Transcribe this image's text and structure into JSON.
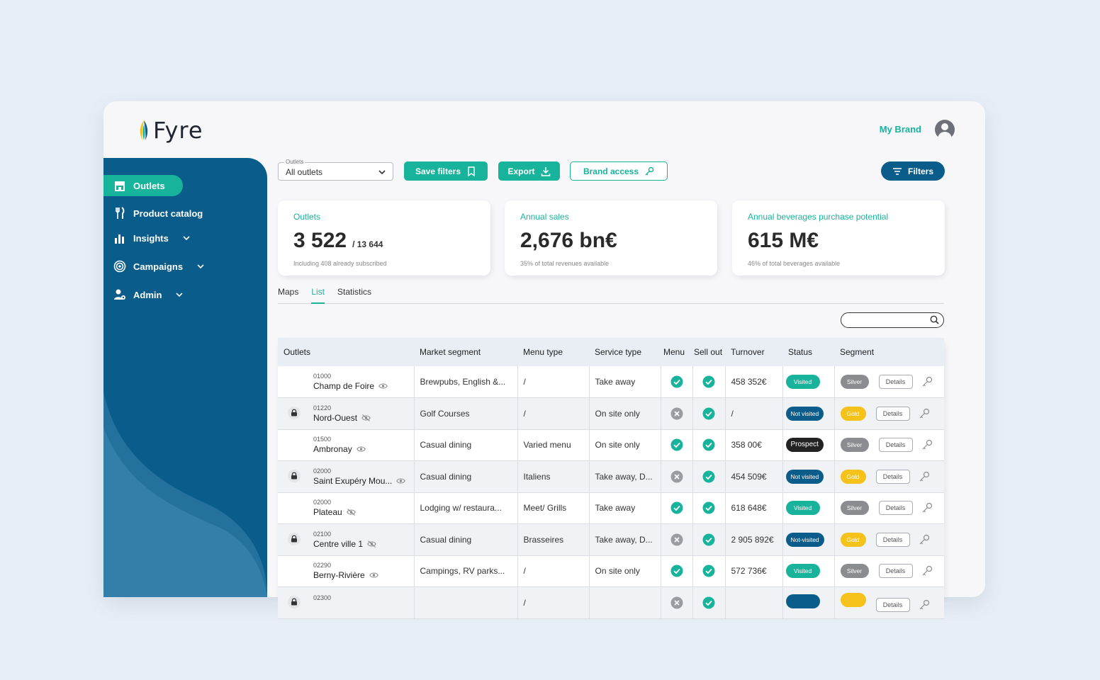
{
  "app": {
    "logo_text": "Fyre",
    "brand": "My Brand"
  },
  "colors": {
    "teal": "#17b39b",
    "navy": "#0a5d8b",
    "gold": "#f4c21b",
    "silver": "#8a8c90"
  },
  "sidebar": {
    "items": [
      {
        "label": "Outlets",
        "icon": "store-icon",
        "active": true
      },
      {
        "label": "Product catalog",
        "icon": "cutlery-icon"
      },
      {
        "label": "Insights",
        "icon": "bar-chart-icon",
        "expandable": true
      },
      {
        "label": "Campaigns",
        "icon": "target-icon",
        "expandable": true
      },
      {
        "label": "Admin",
        "icon": "user-gear-icon",
        "expandable": true
      }
    ]
  },
  "toolbar": {
    "select_label": "Outlets",
    "select_value": "All outlets",
    "save_filters": "Save filters",
    "export": "Export",
    "brand_access": "Brand access",
    "filters": "Filters"
  },
  "cards": [
    {
      "title": "Outlets",
      "value": "3 522",
      "sub": "/ 13 644",
      "note": "Including 408 already subscribed"
    },
    {
      "title": "Annual sales",
      "value": "2,676 bn€",
      "sub": "",
      "note": "35% of total revenues available"
    },
    {
      "title": "Annual beverages purchase potential",
      "value": "615 M€",
      "sub": "",
      "note": "46% of total beverages available"
    }
  ],
  "tabs": [
    {
      "label": "Maps"
    },
    {
      "label": "List",
      "active": true
    },
    {
      "label": "Statistics"
    }
  ],
  "table": {
    "headers": [
      "Outlets",
      "Market segment",
      "Menu type",
      "Service type",
      "Menu",
      "Sell out",
      "Turnover",
      "Status",
      "Segment"
    ],
    "details_label": "Details",
    "rows": [
      {
        "code": "01000",
        "name": "Champ de Foire",
        "locked": false,
        "visible": true,
        "market": "Brewpubs, English &...",
        "menu_type": "/",
        "service": "Take away",
        "menu_ok": true,
        "sellout_ok": true,
        "turnover": "458 352€",
        "status": "Visited",
        "status_kind": "visited",
        "segment": "Silver",
        "segment_kind": "silver"
      },
      {
        "code": "01220",
        "name": "Nord-Ouest",
        "locked": true,
        "visible": false,
        "market": "Golf Courses",
        "menu_type": "/",
        "service": "On site only",
        "menu_ok": false,
        "sellout_ok": true,
        "turnover": "/",
        "status": "Not visited",
        "status_kind": "notv",
        "segment": "Gold",
        "segment_kind": "gold"
      },
      {
        "code": "01500",
        "name": "Ambronay",
        "locked": false,
        "visible": true,
        "market": "Casual dining",
        "menu_type": "Varied menu",
        "service": "On site only",
        "menu_ok": true,
        "sellout_ok": true,
        "turnover": "358 00€",
        "status": "Prospect",
        "status_kind": "prospect",
        "segment": "Silver",
        "segment_kind": "silver"
      },
      {
        "code": "02000",
        "name": "Saint Exupéry Mou...",
        "locked": true,
        "visible": true,
        "market": "Casual dining",
        "menu_type": "Italiens",
        "service": "Take away, D...",
        "menu_ok": false,
        "sellout_ok": true,
        "turnover": "454 509€",
        "status": "Not visited",
        "status_kind": "notv",
        "segment": "Gold",
        "segment_kind": "gold"
      },
      {
        "code": "02000",
        "name": "Plateau",
        "locked": false,
        "visible": false,
        "market": "Lodging w/ restaura...",
        "menu_type": "Meet/ Grills",
        "service": "Take away",
        "menu_ok": true,
        "sellout_ok": true,
        "turnover": "618 648€",
        "status": "Visited",
        "status_kind": "visited",
        "segment": "Silver",
        "segment_kind": "silver"
      },
      {
        "code": "02100",
        "name": "Centre ville 1",
        "locked": true,
        "visible": false,
        "market": "Casual dining",
        "menu_type": "Brasseires",
        "service": "Take away, D...",
        "menu_ok": false,
        "sellout_ok": true,
        "turnover": "2 905 892€",
        "status": "Not-visited",
        "status_kind": "notv",
        "segment": "Gold",
        "segment_kind": "gold"
      },
      {
        "code": "02290",
        "name": "Berny-Rivière",
        "locked": false,
        "visible": true,
        "market": "Campings, RV parks...",
        "menu_type": "/",
        "service": "On site only",
        "menu_ok": true,
        "sellout_ok": true,
        "turnover": "572 736€",
        "status": "Visited",
        "status_kind": "visited",
        "segment": "Silver",
        "segment_kind": "silver"
      },
      {
        "code": "02300",
        "name": "",
        "locked": true,
        "visible": true,
        "market": "",
        "menu_type": "/",
        "service": "",
        "menu_ok": false,
        "sellout_ok": true,
        "turnover": "",
        "status": "",
        "status_kind": "notv",
        "segment": "",
        "segment_kind": "gold"
      }
    ]
  }
}
